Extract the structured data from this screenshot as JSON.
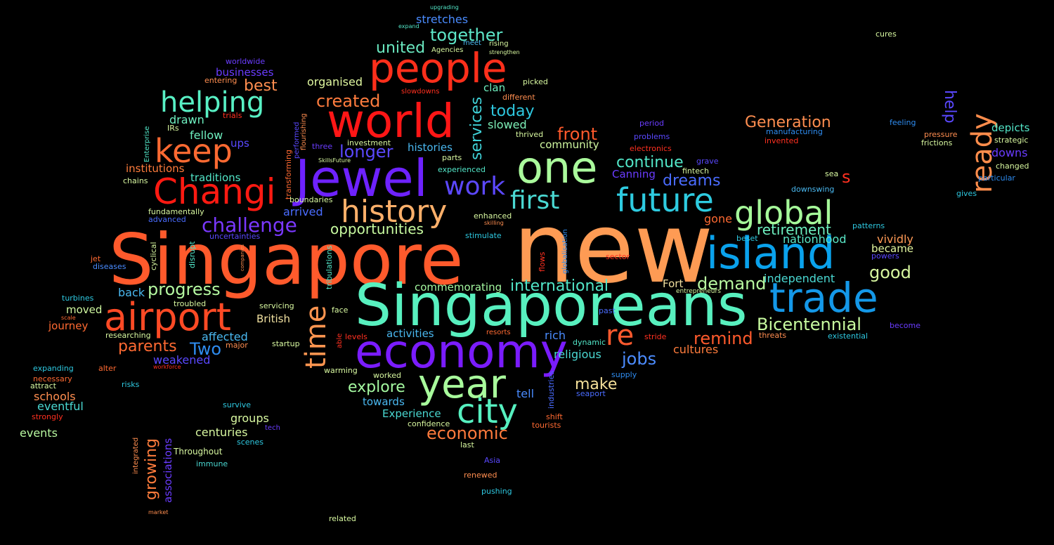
{
  "words": [
    {
      "text": "new",
      "color": "#fe9b54"
    },
    {
      "text": "Singapore",
      "color": "#ff5a2c"
    },
    {
      "text": "Singaporeans",
      "color": "#58f0bf"
    },
    {
      "text": "Jewel",
      "color": "#6e22ff"
    },
    {
      "text": "economy",
      "color": "#7a1cff"
    },
    {
      "text": "world",
      "color": "#ff1616"
    },
    {
      "text": "people",
      "color": "#ff2f1b"
    },
    {
      "text": "island",
      "color": "#0aa2ec"
    },
    {
      "text": "one",
      "color": "#aafa9c"
    },
    {
      "text": "trade",
      "color": "#1498e8"
    },
    {
      "text": "airport",
      "color": "#ff4a25"
    },
    {
      "text": "Changi",
      "color": "#ff1a12"
    },
    {
      "text": "year",
      "color": "#a8fb9c"
    },
    {
      "text": "city",
      "color": "#56f0c0"
    },
    {
      "text": "history",
      "color": "#ffb06a"
    },
    {
      "text": "future",
      "color": "#2ecbe0"
    },
    {
      "text": "global",
      "color": "#a6fa9a"
    },
    {
      "text": "keep",
      "color": "#ff6a32"
    },
    {
      "text": "helping",
      "color": "#58f0c4"
    },
    {
      "text": "ready",
      "color": "#ff8d4c"
    },
    {
      "text": "time",
      "color": "#ff9550"
    },
    {
      "text": "re",
      "color": "#ff5a2e"
    },
    {
      "text": "work",
      "color": "#5c48ff"
    },
    {
      "text": "first",
      "color": "#4ad8d2"
    },
    {
      "text": "challenge",
      "color": "#7a38ff"
    },
    {
      "text": "Bicentennial",
      "color": "#c8fba0"
    },
    {
      "text": "progress",
      "color": "#b4f8a0"
    },
    {
      "text": "international",
      "color": "#52e6c8"
    },
    {
      "text": "demand",
      "color": "#b8f8a0"
    },
    {
      "text": "remind",
      "color": "#ff5a2c"
    },
    {
      "text": "economic",
      "color": "#ff7a3c"
    },
    {
      "text": "services",
      "color": "#3fd0d6"
    },
    {
      "text": "together",
      "color": "#5de6c8"
    },
    {
      "text": "Generation",
      "color": "#ff8e50"
    },
    {
      "text": "opportunities",
      "color": "#c8fba0"
    },
    {
      "text": "created",
      "color": "#ff7c3e"
    },
    {
      "text": "front",
      "color": "#ff5a2c"
    },
    {
      "text": "continue",
      "color": "#52e6c8"
    },
    {
      "text": "retirement",
      "color": "#6ef0c0"
    },
    {
      "text": "jobs",
      "color": "#4c8cff"
    },
    {
      "text": "make",
      "color": "#f4e09a"
    },
    {
      "text": "explore",
      "color": "#a4f8a0"
    },
    {
      "text": "dreams",
      "color": "#4a6cff"
    },
    {
      "text": "good",
      "color": "#d8f8a0"
    },
    {
      "text": "united",
      "color": "#6ae8c0"
    },
    {
      "text": "longer",
      "color": "#5a48ff"
    },
    {
      "text": "today",
      "color": "#2ec8e0"
    },
    {
      "text": "parents",
      "color": "#ff6a32"
    },
    {
      "text": "Two",
      "color": "#2e8cf0"
    },
    {
      "text": "best",
      "color": "#ff8e50"
    },
    {
      "text": "growing",
      "color": "#ff7c3c"
    },
    {
      "text": "help",
      "color": "#5a48ff"
    },
    {
      "text": "s",
      "color": "#ff3020"
    },
    {
      "text": "stretches",
      "color": "#4a8cff"
    },
    {
      "text": "organised",
      "color": "#e0f8a0"
    },
    {
      "text": "independent",
      "color": "#4ad8d2"
    },
    {
      "text": "vividly",
      "color": "#ff9a56"
    },
    {
      "text": "nationhood",
      "color": "#5ae8c8"
    },
    {
      "text": "became",
      "color": "#e4f8a0"
    },
    {
      "text": "cultures",
      "color": "#ff7c3c"
    },
    {
      "text": "religious",
      "color": "#4ad8d2"
    },
    {
      "text": "commemorating",
      "color": "#a4f8a0"
    },
    {
      "text": "community",
      "color": "#d0f8a0"
    },
    {
      "text": "histories",
      "color": "#4ab8f0"
    },
    {
      "text": "clan",
      "color": "#6ef0c0"
    },
    {
      "text": "slowed",
      "color": "#7ef0b8"
    },
    {
      "text": "depicts",
      "color": "#52e6c8"
    },
    {
      "text": "downs",
      "color": "#6a3cff"
    },
    {
      "text": "affected",
      "color": "#4ab8f0"
    },
    {
      "text": "weakened",
      "color": "#5a48ff"
    },
    {
      "text": "activities",
      "color": "#4ab8f0"
    },
    {
      "text": "towards",
      "color": "#4ab8f0"
    },
    {
      "text": "Experience",
      "color": "#4ad8d2"
    },
    {
      "text": "British",
      "color": "#f0e0a0"
    },
    {
      "text": "Fort",
      "color": "#f0e0a0"
    },
    {
      "text": "Canning",
      "color": "#6a3cff"
    },
    {
      "text": "tell",
      "color": "#4a8cff"
    },
    {
      "text": "rich",
      "color": "#4a8cff"
    },
    {
      "text": "gone",
      "color": "#ff6a32"
    },
    {
      "text": "arrived",
      "color": "#4a6cff"
    },
    {
      "text": "back",
      "color": "#4ab8f0"
    },
    {
      "text": "traditions",
      "color": "#52e6c8"
    },
    {
      "text": "institutions",
      "color": "#ff7c3c"
    },
    {
      "text": "fellow",
      "color": "#6ef0c0"
    },
    {
      "text": "drawn",
      "color": "#6ef0c0"
    },
    {
      "text": "ups",
      "color": "#5a48ff"
    },
    {
      "text": "businesses",
      "color": "#6a3cff"
    },
    {
      "text": "journey",
      "color": "#ff6a32"
    },
    {
      "text": "moved",
      "color": "#d0f8a0"
    },
    {
      "text": "schools",
      "color": "#ff8e50"
    },
    {
      "text": "eventful",
      "color": "#4ad8d2"
    },
    {
      "text": "events",
      "color": "#b8f8a0"
    },
    {
      "text": "groups",
      "color": "#d8f8a0"
    },
    {
      "text": "centuries",
      "color": "#d8f8a0"
    },
    {
      "text": "associations",
      "color": "#6a3cff"
    },
    {
      "text": "Throughout",
      "color": "#d8f8a0"
    },
    {
      "text": "immune",
      "color": "#4ad8d2"
    },
    {
      "text": "scenes",
      "color": "#2ec8e0"
    },
    {
      "text": "survive",
      "color": "#2ec8e0"
    },
    {
      "text": "tech",
      "color": "#6a3cff"
    },
    {
      "text": "last",
      "color": "#d8f8a0"
    },
    {
      "text": "Asia",
      "color": "#5a48ff"
    },
    {
      "text": "renewed",
      "color": "#ff8e50"
    },
    {
      "text": "pushing",
      "color": "#2ec8e0"
    },
    {
      "text": "related",
      "color": "#d8f8a0"
    },
    {
      "text": "market",
      "color": "#ff8e50"
    },
    {
      "text": "confidence",
      "color": "#d8f8a0"
    },
    {
      "text": "tourists",
      "color": "#ff6a32"
    },
    {
      "text": "shift",
      "color": "#ff6a32"
    },
    {
      "text": "seaport",
      "color": "#4a6cff"
    },
    {
      "text": "supply",
      "color": "#2e8cf0"
    },
    {
      "text": "dynamic",
      "color": "#52e6c8"
    },
    {
      "text": "resorts",
      "color": "#ff6a32"
    },
    {
      "text": "stride",
      "color": "#ff3020"
    },
    {
      "text": "threats",
      "color": "#ff8e50"
    },
    {
      "text": "existential",
      "color": "#2ec8e0"
    },
    {
      "text": "become",
      "color": "#6a3cff"
    },
    {
      "text": "entrepreneurs",
      "color": "#d8f8a0"
    },
    {
      "text": "past",
      "color": "#4a6cff"
    },
    {
      "text": "sector",
      "color": "#ff3020"
    },
    {
      "text": "beset",
      "color": "#2ec8e0"
    },
    {
      "text": "powers",
      "color": "#5a48ff"
    },
    {
      "text": "patterns",
      "color": "#2ec8e0"
    },
    {
      "text": "gives",
      "color": "#2ec8e0"
    },
    {
      "text": "particular",
      "color": "#2e8cf0"
    },
    {
      "text": "changed",
      "color": "#d8f8a0"
    },
    {
      "text": "frictions",
      "color": "#d8f8a0"
    },
    {
      "text": "strategic",
      "color": "#d8f8a0"
    },
    {
      "text": "pressure",
      "color": "#ff8e50"
    },
    {
      "text": "feeling",
      "color": "#2e8cf0"
    },
    {
      "text": "cures",
      "color": "#d8f8a0"
    },
    {
      "text": "sea",
      "color": "#d8f8a0"
    },
    {
      "text": "downswing",
      "color": "#4ab8f0"
    },
    {
      "text": "fintech",
      "color": "#d8f8a0"
    },
    {
      "text": "grave",
      "color": "#5a48ff"
    },
    {
      "text": "electronics",
      "color": "#ff3020"
    },
    {
      "text": "problems",
      "color": "#5a48ff"
    },
    {
      "text": "period",
      "color": "#6a3cff"
    },
    {
      "text": "manufacturing",
      "color": "#2e8cf0"
    },
    {
      "text": "invented",
      "color": "#ff3020"
    },
    {
      "text": "thrived",
      "color": "#d8f8a0"
    },
    {
      "text": "different",
      "color": "#ff8e50"
    },
    {
      "text": "picked",
      "color": "#d8f8a0"
    },
    {
      "text": "slowdowns",
      "color": "#ff3020"
    },
    {
      "text": "Agencies",
      "color": "#d8f8a0"
    },
    {
      "text": "meet",
      "color": "#4ab8f0"
    },
    {
      "text": "rising",
      "color": "#d8f8a0"
    },
    {
      "text": "strengthen",
      "color": "#d8f8a0"
    },
    {
      "text": "expand",
      "color": "#52e6c8"
    },
    {
      "text": "upgrading",
      "color": "#52e6c8"
    },
    {
      "text": "worldwide",
      "color": "#6a3cff"
    },
    {
      "text": "entering",
      "color": "#ff8e50"
    },
    {
      "text": "trials",
      "color": "#ff3020"
    },
    {
      "text": "IRs",
      "color": "#d8f8a0"
    },
    {
      "text": "Enterprise",
      "color": "#52e6c8"
    },
    {
      "text": "chains",
      "color": "#d8f8a0"
    },
    {
      "text": "fundamentally",
      "color": "#d8f8a0"
    },
    {
      "text": "advanced",
      "color": "#4a6cff"
    },
    {
      "text": "uncertainties",
      "color": "#5a48ff"
    },
    {
      "text": "cyclical",
      "color": "#d8f8a0"
    },
    {
      "text": "disrupt",
      "color": "#52e6c8"
    },
    {
      "text": "companies",
      "color": "#ff8e50"
    },
    {
      "text": "jet",
      "color": "#ff6a32"
    },
    {
      "text": "diseases",
      "color": "#4a8cff"
    },
    {
      "text": "turbines",
      "color": "#2ec8e0"
    },
    {
      "text": "troubled",
      "color": "#d8f8a0"
    },
    {
      "text": "scale",
      "color": "#ff6a32"
    },
    {
      "text": "researching",
      "color": "#d8f8a0"
    },
    {
      "text": "servicing",
      "color": "#d8f8a0"
    },
    {
      "text": "face",
      "color": "#d8f8a0"
    },
    {
      "text": "major",
      "color": "#ff8e50"
    },
    {
      "text": "startup",
      "color": "#d8f8a0"
    },
    {
      "text": "able",
      "color": "#ff3020"
    },
    {
      "text": "levels",
      "color": "#ff3020"
    },
    {
      "text": "expanding",
      "color": "#2ec8e0"
    },
    {
      "text": "alter",
      "color": "#ff6a32"
    },
    {
      "text": "workforce",
      "color": "#ff3020"
    },
    {
      "text": "necessary",
      "color": "#ff6a32"
    },
    {
      "text": "attract",
      "color": "#d8f8a0"
    },
    {
      "text": "risks",
      "color": "#2ec8e0"
    },
    {
      "text": "strongly",
      "color": "#ff3020"
    },
    {
      "text": "warming",
      "color": "#d8f8a0"
    },
    {
      "text": "worked",
      "color": "#d8f8a0"
    },
    {
      "text": "integrated",
      "color": "#ff8e50"
    },
    {
      "text": "transforming",
      "color": "#ff6a32"
    },
    {
      "text": "performed",
      "color": "#5a48ff"
    },
    {
      "text": "flourishing",
      "color": "#ff8e50"
    },
    {
      "text": "three",
      "color": "#6a3cff"
    },
    {
      "text": "investment",
      "color": "#d8f8a0"
    },
    {
      "text": "SkillsFuture",
      "color": "#d8f8a0"
    },
    {
      "text": "parts",
      "color": "#d8f8a0"
    },
    {
      "text": "experienced",
      "color": "#52e6c8"
    },
    {
      "text": "boundaries",
      "color": "#d8f8a0"
    },
    {
      "text": "enhanced",
      "color": "#d8f8a0"
    },
    {
      "text": "skilling",
      "color": "#ff8e50"
    },
    {
      "text": "stimulate",
      "color": "#2ec8e0"
    },
    {
      "text": "globalisation",
      "color": "#2e8cf0"
    },
    {
      "text": "flows",
      "color": "#ff3020"
    },
    {
      "text": "tribulations",
      "color": "#52e6c8"
    },
    {
      "text": "industries",
      "color": "#4a6cff"
    }
  ]
}
